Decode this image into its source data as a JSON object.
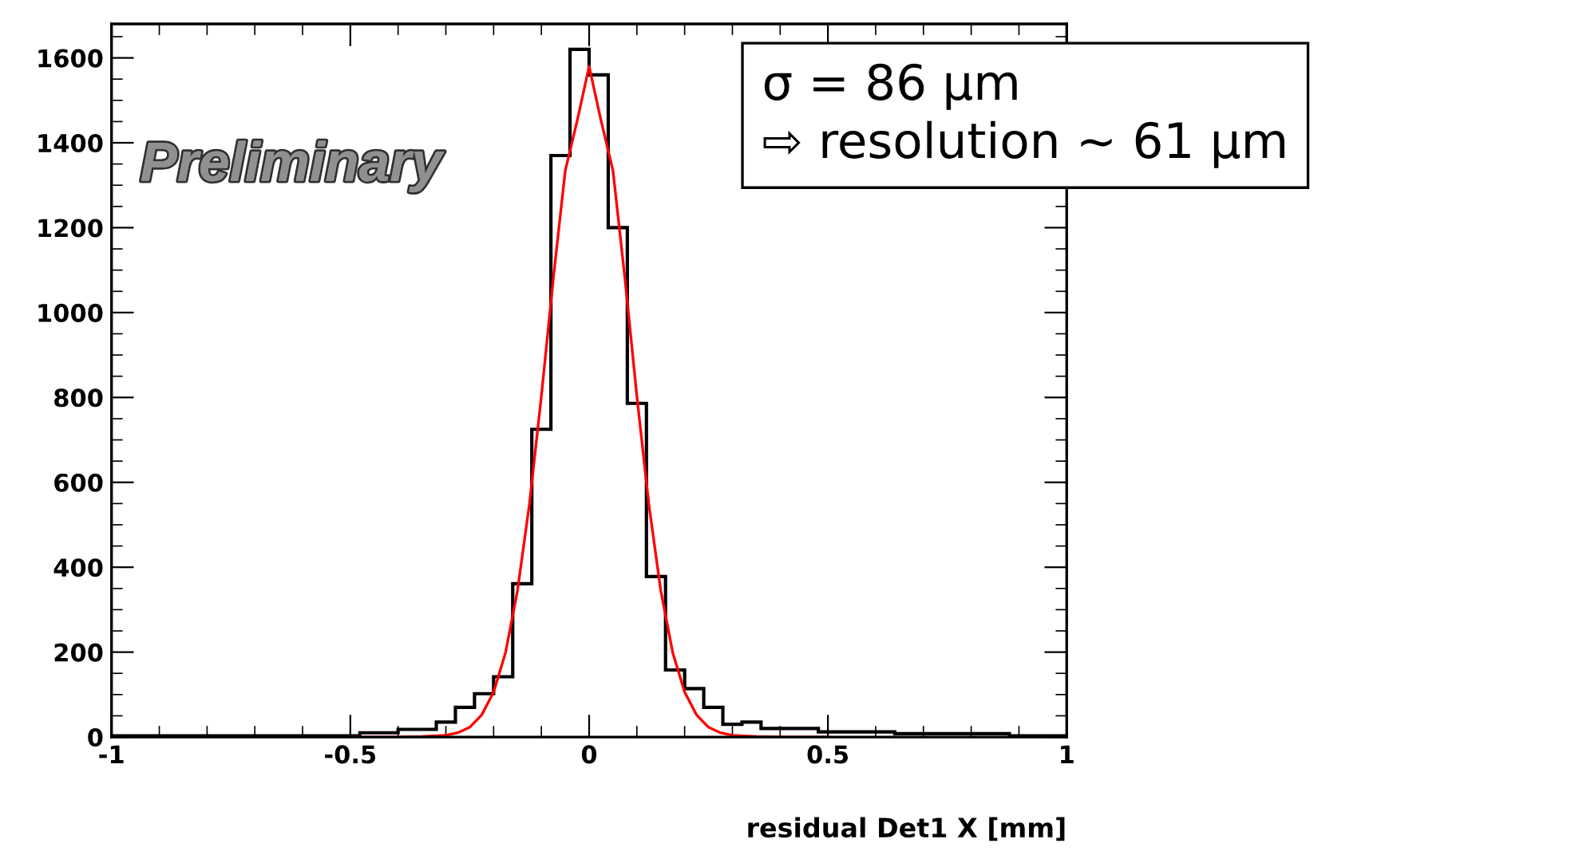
{
  "chart_data": {
    "type": "histogram",
    "xlabel": "residual Det1 X [mm]",
    "bins": [
      -1.0,
      -0.96,
      -0.92,
      -0.88,
      -0.84,
      -0.8,
      -0.76,
      -0.72,
      -0.68,
      -0.64,
      -0.6,
      -0.56,
      -0.52,
      -0.48,
      -0.44,
      -0.4,
      -0.36,
      -0.32,
      -0.28,
      -0.24,
      -0.2,
      -0.16,
      -0.12,
      -0.08,
      -0.04,
      0.0,
      0.04,
      0.08,
      0.12,
      0.16,
      0.2,
      0.24,
      0.28,
      0.32,
      0.36,
      0.4,
      0.44,
      0.48,
      0.52,
      0.56,
      0.6,
      0.64,
      0.68,
      0.72,
      0.76,
      0.8,
      0.84,
      0.88,
      0.92,
      0.96,
      1.0
    ],
    "series": [
      {
        "color": "#000000",
        "values": [
          3,
          3,
          3,
          3,
          3,
          3,
          3,
          3,
          3,
          3,
          3,
          3,
          3,
          10,
          10,
          18,
          18,
          35,
          70,
          102,
          142,
          361,
          725,
          1370,
          1620,
          1560,
          1200,
          786,
          378,
          158,
          114,
          70,
          30,
          35,
          20,
          20,
          20,
          12,
          12,
          12,
          12,
          8,
          8,
          8,
          8,
          8,
          8,
          3,
          3,
          3
        ]
      },
      {
        "type": "line",
        "color": "#ff0000",
        "x": [
          -0.5,
          -0.4,
          -0.35,
          -0.3,
          -0.275,
          -0.25,
          -0.225,
          -0.2,
          -0.175,
          -0.15,
          -0.125,
          -0.1,
          -0.075,
          -0.05,
          -0.025,
          0.0,
          0.025,
          0.05,
          0.075,
          0.1,
          0.125,
          0.15,
          0.175,
          0.2,
          0.225,
          0.25,
          0.275,
          0.3,
          0.35,
          0.4,
          0.5
        ],
        "values": [
          0,
          0,
          1,
          4,
          10,
          23,
          52,
          106,
          199,
          345,
          549,
          803,
          1080,
          1334,
          1452,
          1580,
          1452,
          1334,
          1080,
          803,
          549,
          345,
          199,
          106,
          52,
          23,
          10,
          4,
          1,
          0,
          0
        ]
      }
    ],
    "xlim": [
      -1,
      1
    ],
    "xticks": [
      -1,
      -0.5,
      0,
      0.5,
      1
    ],
    "ylim": [
      0,
      1680
    ],
    "yticks": [
      0,
      200,
      400,
      600,
      800,
      1000,
      1200,
      1400,
      1600
    ],
    "grid": false,
    "annotations": [
      "Preliminary",
      "σ = 86 µm",
      "⇨ resolution ~ 61 µm"
    ]
  }
}
